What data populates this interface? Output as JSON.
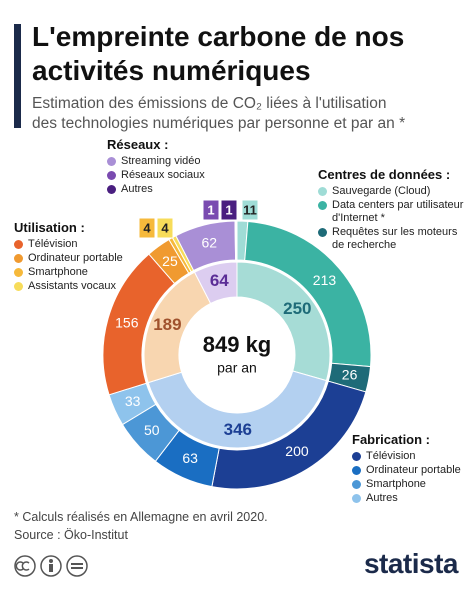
{
  "chart_data": {
    "type": "donut",
    "title": "L'empreinte carbone de nos activités numériques",
    "subtitle": [
      "Estimation des émissions de CO₂ liées à l'utilisation",
      "des technologies numériques par personne et par an *"
    ],
    "center_label": "849 kg",
    "center_sublabel": "par an",
    "groups": [
      {
        "name": "Centres de données :",
        "total": 250,
        "color": "#a6dcd6",
        "label_color": "#1e6b78",
        "series": [
          {
            "name": "Sauvegarde (Cloud)",
            "color": "#9fdcd6",
            "value": 11
          },
          {
            "name": "Data centers par utilisateur d'Internet *",
            "color": "#3bb3a3",
            "value": 213
          },
          {
            "name": "Requêtes sur les moteurs de recherche",
            "color": "#1e6b78",
            "value": 26
          }
        ]
      },
      {
        "name": "Fabrication :",
        "total": 346,
        "color": "#b3d0f0",
        "label_color": "#1c3f94",
        "series": [
          {
            "name": "Télévision",
            "color": "#1c3f94",
            "value": 200
          },
          {
            "name": "Ordinateur portable",
            "color": "#1a6ec2",
            "value": 63
          },
          {
            "name": "Smartphone",
            "color": "#4c97d6",
            "value": 50
          },
          {
            "name": "Autres",
            "color": "#8ec3ec",
            "value": 33
          }
        ]
      },
      {
        "name": "Utilisation :",
        "total": 189,
        "color": "#f8d6b0",
        "label_color": "#a0522d",
        "series": [
          {
            "name": "Télévision",
            "color": "#e8632c",
            "value": 156
          },
          {
            "name": "Ordinateur portable",
            "color": "#f09a30",
            "value": 25
          },
          {
            "name": "Smartphone",
            "color": "#f6b93b",
            "value": 4
          },
          {
            "name": "Assistants vocaux",
            "color": "#f7dc5a",
            "value": 4
          }
        ]
      },
      {
        "name": "Réseaux :",
        "total": 64,
        "color": "#dccdf0",
        "label_color": "#5b2d96",
        "series": [
          {
            "name": "Streaming vidéo",
            "color": "#a98fd6",
            "value": 62
          },
          {
            "name": "Réseaux sociaux",
            "color": "#7a4bb0",
            "value": 1
          },
          {
            "name": "Autres",
            "color": "#4a1f80",
            "value": 1
          }
        ]
      }
    ]
  },
  "footer": {
    "note": "* Calculs réalisés en Allemagne en avril 2020.",
    "source": "Source : Öko-Institut",
    "logo": "statista"
  }
}
